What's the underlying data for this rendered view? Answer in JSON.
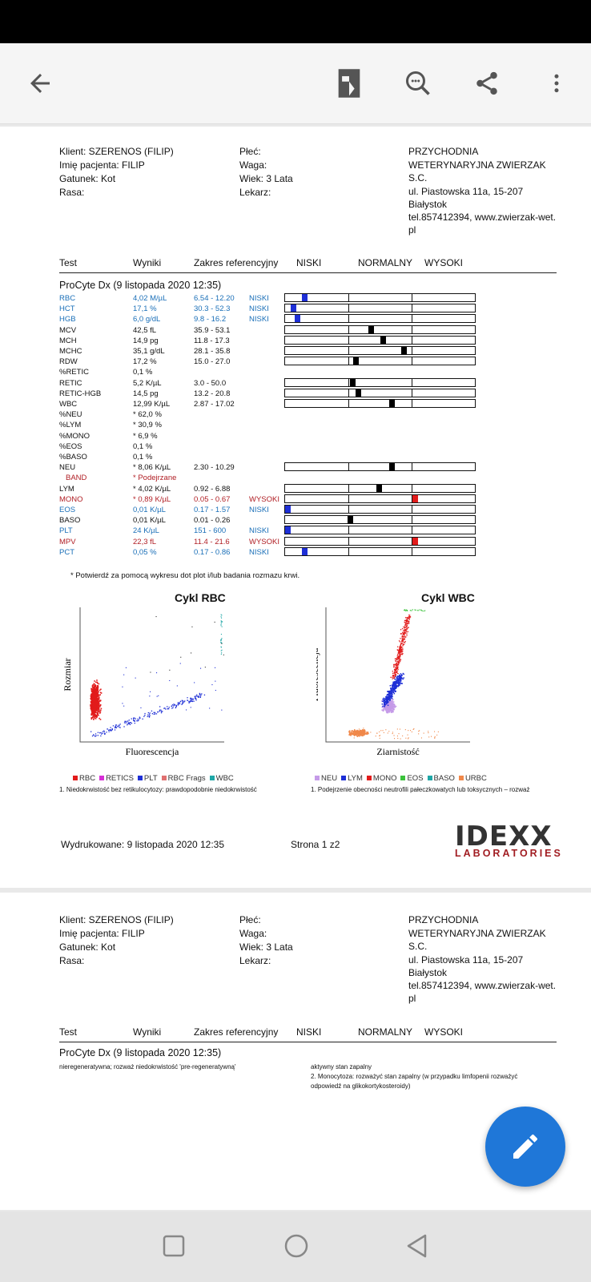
{
  "toolbar": {
    "icons": [
      "back-arrow-icon",
      "reader-mode-icon",
      "search-icon",
      "share-icon",
      "more-vert-icon"
    ]
  },
  "header": {
    "client": "Klient: SZERENOS (FILIP)",
    "patient": "Imię pacjenta: FILIP",
    "species": "Gatunek: Kot",
    "breed": "Rasa:",
    "sex": "Płeć:",
    "weight": "Waga:",
    "age": "Wiek: 3 Lata",
    "doctor": "Lekarz:",
    "clinic": [
      "PRZYCHODNIA",
      "WETERYNARYJNA ZWIERZAK",
      "S.C.",
      "ul. Piastowska 11a, 15-207",
      "Białystok",
      "tel.857412394, www.zwierzak-wet.",
      "pl"
    ]
  },
  "columns": {
    "test": "Test",
    "results": "Wyniki",
    "range": "Zakres referencyjny",
    "low": "NISKI",
    "normal": "NORMALNY",
    "high": "WYSOKI"
  },
  "section_title": "ProCyte Dx (9 listopada 2020 12:35)",
  "results": [
    {
      "test": "RBC",
      "value": "4,02 M/µL",
      "range": "6.54 - 12.20",
      "flag": "NISKI",
      "color": "blue",
      "bar": {
        "pos": 0.09,
        "kind": "l"
      }
    },
    {
      "test": "HCT",
      "value": "17,1 %",
      "range": "30.3 - 52.3",
      "flag": "NISKI",
      "color": "blue",
      "bar": {
        "pos": 0.03,
        "kind": "l"
      }
    },
    {
      "test": "HGB",
      "value": "6,0 g/dL",
      "range": "9.8 - 16.2",
      "flag": "NISKI",
      "color": "blue",
      "bar": {
        "pos": 0.05,
        "kind": "l"
      }
    },
    {
      "test": "MCV",
      "value": "42,5 fL",
      "range": "35.9 - 53.1",
      "flag": "",
      "color": "black",
      "bar": {
        "pos": 0.44,
        "kind": "n"
      }
    },
    {
      "test": "MCH",
      "value": "14,9 pg",
      "range": "11.8 - 17.3",
      "flag": "",
      "color": "black",
      "bar": {
        "pos": 0.5,
        "kind": "n"
      }
    },
    {
      "test": "MCHC",
      "value": "35,1 g/dL",
      "range": "28.1 - 35.8",
      "flag": "",
      "color": "black",
      "bar": {
        "pos": 0.61,
        "kind": "n"
      }
    },
    {
      "test": "RDW",
      "value": "17,2 %",
      "range": "15.0 - 27.0",
      "flag": "",
      "color": "black",
      "bar": {
        "pos": 0.36,
        "kind": "n"
      }
    },
    {
      "test": "%RETIC",
      "value": "0,1 %",
      "range": "",
      "flag": "",
      "color": "black"
    },
    {
      "test": "RETIC",
      "value": "5,2 K/µL",
      "range": "3.0 - 50.0",
      "flag": "",
      "color": "black",
      "bar": {
        "pos": 0.34,
        "kind": "n"
      }
    },
    {
      "test": "RETIC-HGB",
      "value": "14,5 pg",
      "range": "13.2 - 20.8",
      "flag": "",
      "color": "black",
      "bar": {
        "pos": 0.37,
        "kind": "n"
      }
    },
    {
      "test": "WBC",
      "value": "12,99 K/µL",
      "range": "2.87 - 17.02",
      "flag": "",
      "color": "black",
      "bar": {
        "pos": 0.55,
        "kind": "n"
      }
    },
    {
      "test": "%NEU",
      "value": "* 62,0 %",
      "range": "",
      "flag": "",
      "color": "black"
    },
    {
      "test": "%LYM",
      "value": "* 30,9 %",
      "range": "",
      "flag": "",
      "color": "black"
    },
    {
      "test": "%MONO",
      "value": "* 6,9 %",
      "range": "",
      "flag": "",
      "color": "black"
    },
    {
      "test": "%EOS",
      "value": "0,1 %",
      "range": "",
      "flag": "",
      "color": "black"
    },
    {
      "test": "%BASO",
      "value": "0,1 %",
      "range": "",
      "flag": "",
      "color": "black"
    },
    {
      "test": "NEU",
      "value": "* 8,06 K/µL",
      "range": "2.30 - 10.29",
      "flag": "",
      "color": "black",
      "bar": {
        "pos": 0.55,
        "kind": "n"
      }
    },
    {
      "test": "BAND",
      "value": "* Podejrzane",
      "range": "",
      "flag": "",
      "color": "red",
      "indent": true
    },
    {
      "test": "LYM",
      "value": "* 4,02 K/µL",
      "range": "0.92 - 6.88",
      "flag": "",
      "color": "black",
      "bar": {
        "pos": 0.48,
        "kind": "n"
      }
    },
    {
      "test": "MONO",
      "value": "* 0,89 K/µL",
      "range": "0.05 - 0.67",
      "flag": "WYSOKI",
      "color": "red",
      "bar": {
        "pos": 0.67,
        "kind": "h"
      }
    },
    {
      "test": "EOS",
      "value": "0,01 K/µL",
      "range": "0.17 - 1.57",
      "flag": "NISKI",
      "color": "blue",
      "bar": {
        "pos": 0.0,
        "kind": "l"
      }
    },
    {
      "test": "BASO",
      "value": "0,01 K/µL",
      "range": "0.01 - 0.26",
      "flag": "",
      "color": "black",
      "bar": {
        "pos": 0.33,
        "kind": "n"
      }
    },
    {
      "test": "PLT",
      "value": "24 K/µL",
      "range": "151 - 600",
      "flag": "NISKI",
      "color": "blue",
      "bar": {
        "pos": 0.0,
        "kind": "l"
      }
    },
    {
      "test": "MPV",
      "value": "22,3 fL",
      "range": "11.4 - 21.6",
      "flag": "WYSOKI",
      "color": "red",
      "bar": {
        "pos": 0.67,
        "kind": "h"
      }
    },
    {
      "test": "PCT",
      "value": "0,05 %",
      "range": "0.17 - 0.86",
      "flag": "NISKI",
      "color": "blue",
      "bar": {
        "pos": 0.09,
        "kind": "l"
      }
    }
  ],
  "footnote": "* Potwierdź za pomocą wykresu dot plot i/lub badania rozmazu krwi.",
  "chart_data": [
    {
      "type": "scatter",
      "title": "Cykl RBC",
      "xlabel": "Fluorescencja",
      "ylabel": "Rozmiar",
      "legend": [
        {
          "name": "RBC",
          "color": "#e21b1b"
        },
        {
          "name": "RETICS",
          "color": "#d62fd6"
        },
        {
          "name": "PLT",
          "color": "#1e2fd6"
        },
        {
          "name": "RBC Frags",
          "color": "#e07070"
        },
        {
          "name": "WBC",
          "color": "#1fa7a7"
        }
      ],
      "note": "1. Niedokrwistość bez retikulocytozy: prawdopodobnie niedokrwistość"
    },
    {
      "type": "scatter",
      "title": "Cykl WBC",
      "xlabel": "Ziarnistość",
      "ylabel": "Fluorescencja",
      "legend": [
        {
          "name": "NEU",
          "color": "#c59be8"
        },
        {
          "name": "LYM",
          "color": "#1e2fd6"
        },
        {
          "name": "MONO",
          "color": "#e21b1b"
        },
        {
          "name": "EOS",
          "color": "#3bc23b"
        },
        {
          "name": "BASO",
          "color": "#1fa7a7"
        },
        {
          "name": "URBC",
          "color": "#f0884a"
        }
      ],
      "note": "1. Podejrzenie obecności neutrofili pałeczkowatych lub toksycznych – rozważ"
    }
  ],
  "footer": {
    "printed": "Wydrukowane: 9 listopada 2020 12:35",
    "page": "Strona 1 z2",
    "logo": "IDEXX",
    "logo_sub": "LABORATORIES"
  },
  "page2": {
    "note_left": "nieregeneratywna; rozważ niedokrwistość 'pre-regeneratywną'",
    "note_right_1": "aktywny stan zapalny",
    "note_right_2": "2. Monocytoza: rozważyć stan zapalny (w przypadku limfopenii rozważyć",
    "note_right_3": "odpowiedź na glikokortykosteroidy)"
  }
}
